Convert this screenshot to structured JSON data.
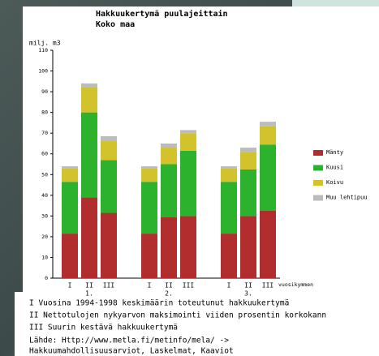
{
  "chart_data": {
    "type": "bar",
    "stacked": true,
    "title": "Hakkuukertymä puulajeittain",
    "subtitle": "Koko maa",
    "y_label": "milj. m3",
    "x_label": "vuosikymmen",
    "categories": [
      "I",
      "II",
      "III",
      "I",
      "II",
      "III",
      "I",
      "II",
      "III"
    ],
    "groups": [
      "1.",
      "2.",
      "3."
    ],
    "series": [
      {
        "name": "Mänty",
        "color": "#b22d2d",
        "values": [
          21.5,
          39,
          31.5,
          21.5,
          29.5,
          30,
          21.5,
          30,
          32.5
        ]
      },
      {
        "name": "Kuusi",
        "color": "#2db22d",
        "values": [
          25,
          41,
          25.5,
          25,
          25.5,
          31.5,
          25,
          22.5,
          32
        ]
      },
      {
        "name": "Koivu",
        "color": "#d2c32d",
        "values": [
          6.5,
          12,
          9.5,
          6.5,
          8,
          8.5,
          6.5,
          8.5,
          9
        ]
      },
      {
        "name": "Muu lehtipuu",
        "color": "#bcbcbc",
        "values": [
          1,
          2,
          2,
          1,
          2,
          1.5,
          1,
          2,
          2
        ]
      }
    ],
    "ylim": [
      0,
      110
    ],
    "yticks": [
      0,
      10,
      20,
      30,
      40,
      50,
      60,
      70,
      80,
      90,
      100,
      110
    ],
    "legend": "right"
  },
  "notes": [
    "I   Vuosina 1994-1998 keskimäärin toteutunut hakkuukertymä",
    "II  Nettotulojen nykyarvon maksimointi viiden prosentin korkokann",
    "III Suurin kestävä hakkuukertymä"
  ],
  "source": [
    "Lähde: Http://www.metla.fi/metinfo/mela/ ->",
    "Hakkuumahdollisuusarviot, Laskelmat, Kaaviot"
  ]
}
